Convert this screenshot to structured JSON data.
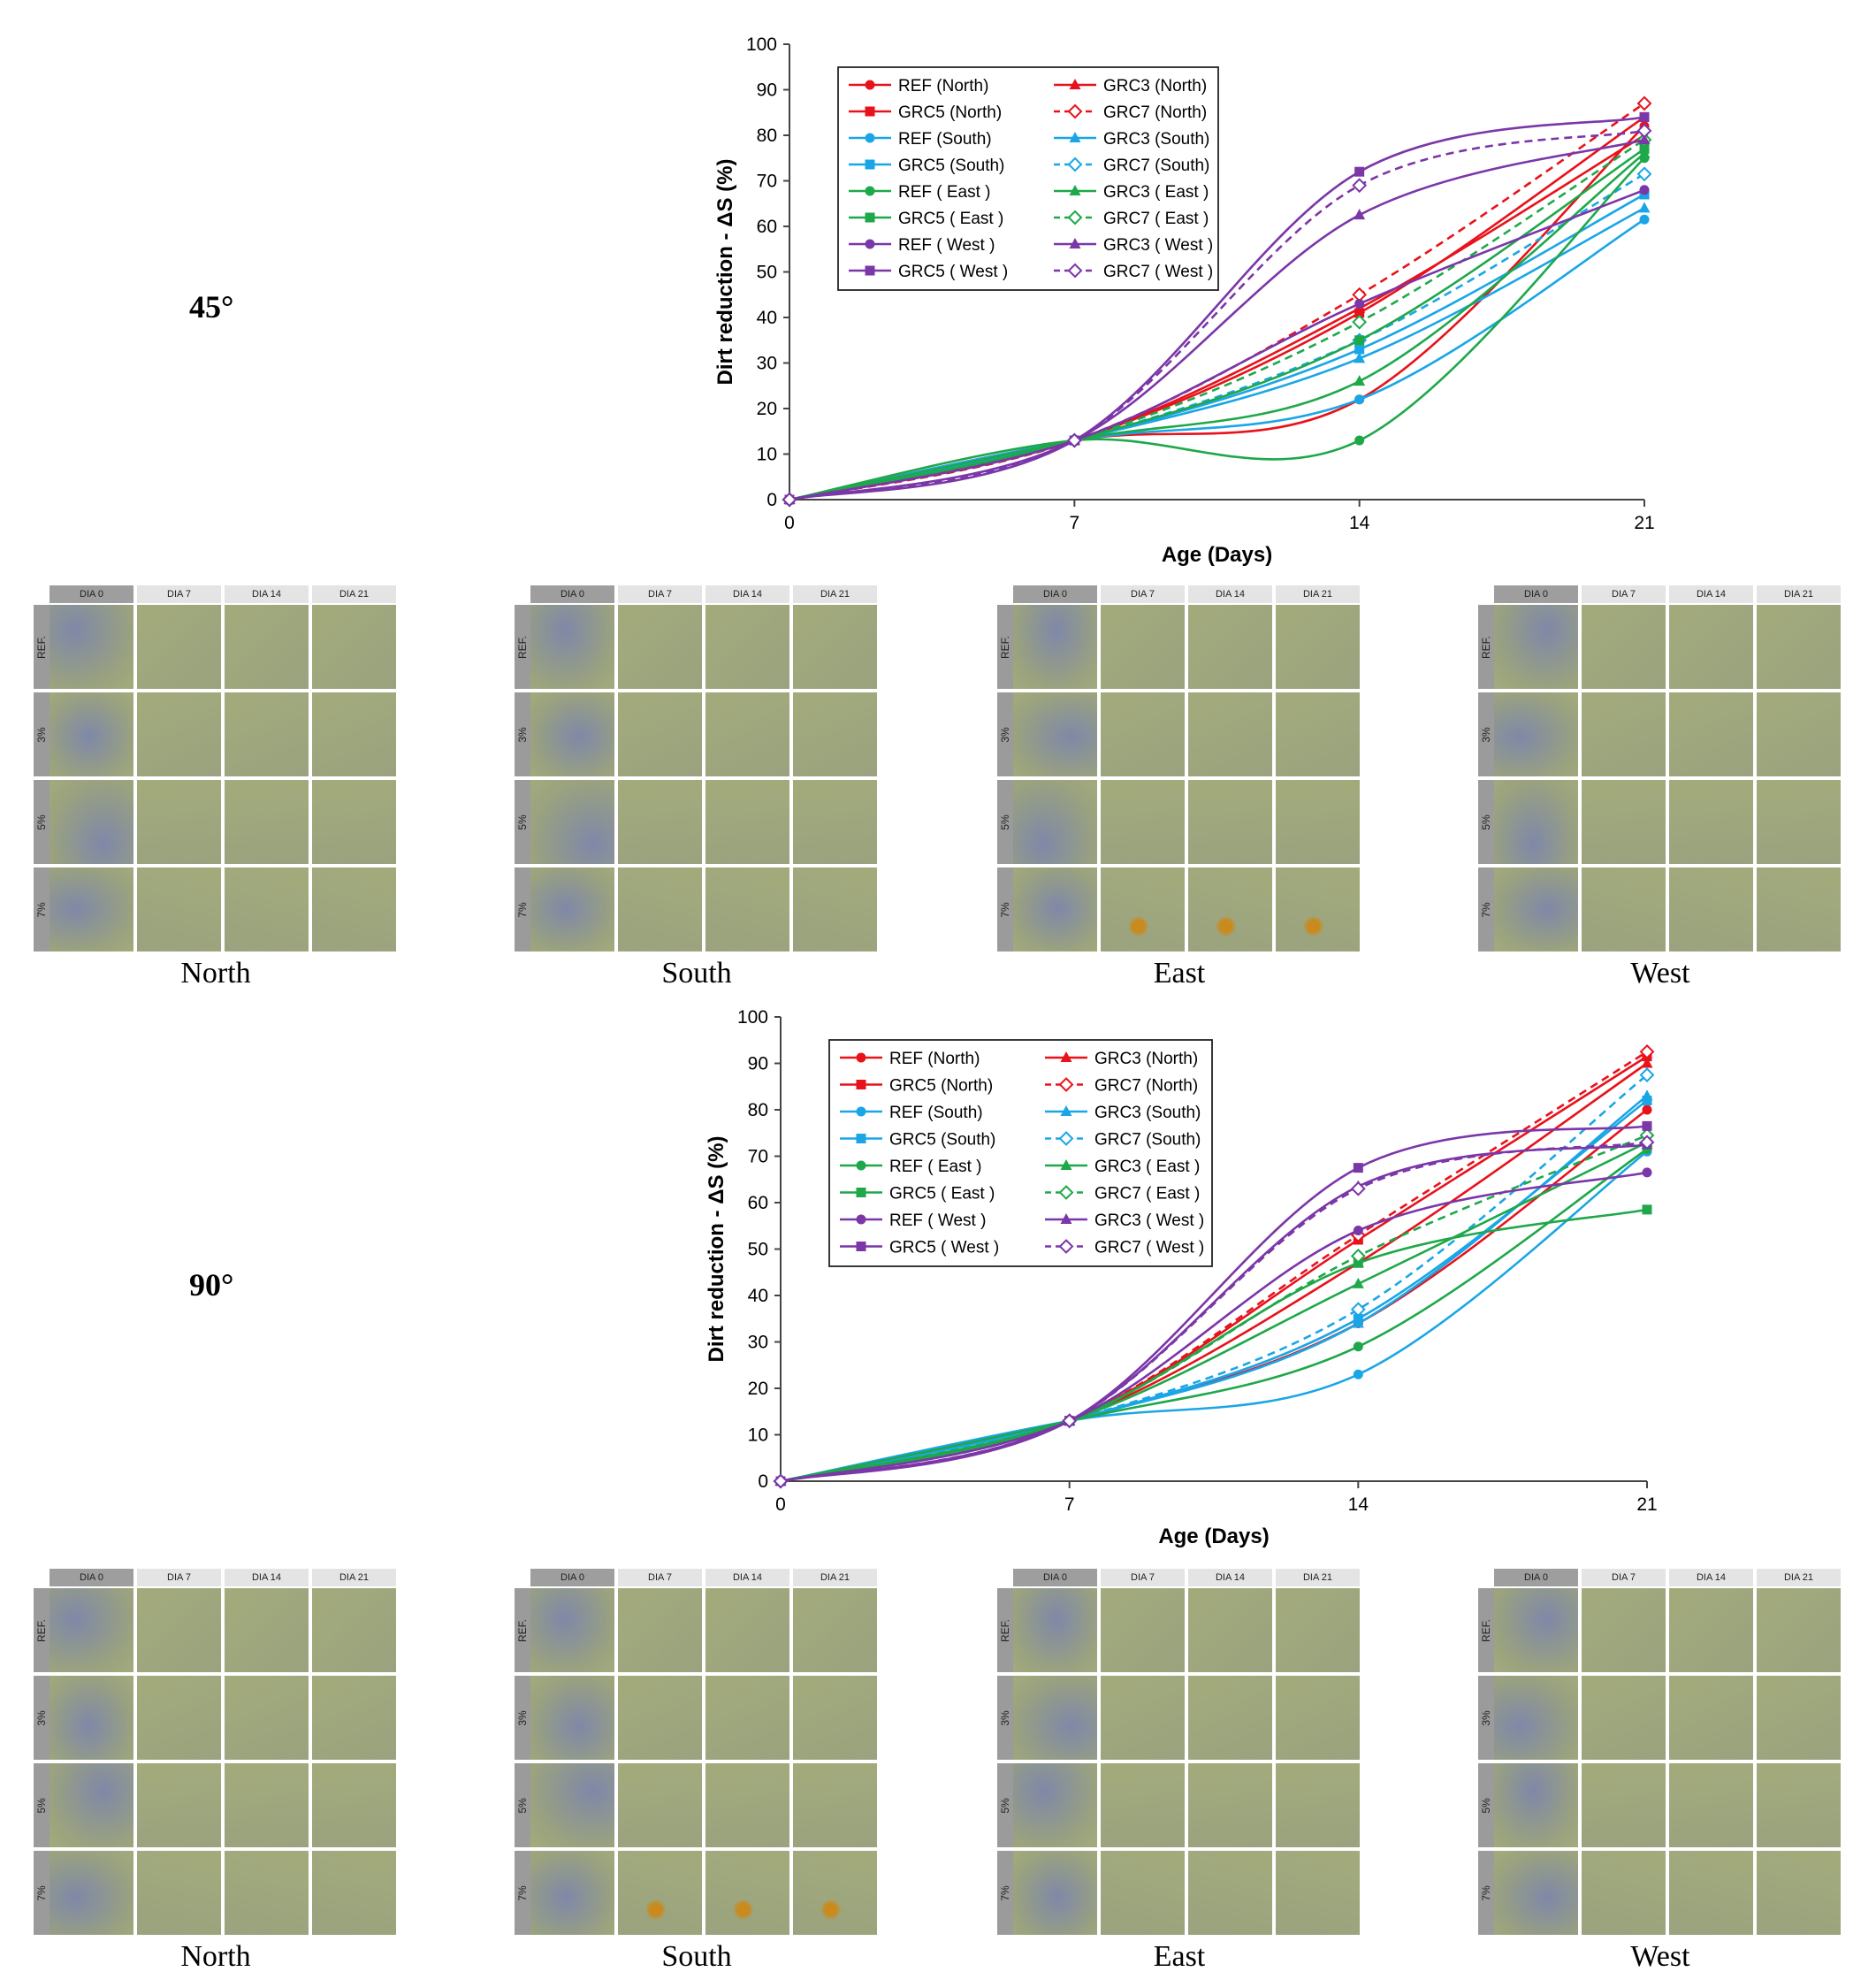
{
  "angles": [
    "45°",
    "90°"
  ],
  "photo_grid": {
    "columns": [
      "DIA 0",
      "DIA 7",
      "DIA 14",
      "DIA 21"
    ],
    "rows": [
      "REF.",
      "3%",
      "5%",
      "7%"
    ],
    "captions": [
      "North",
      "South",
      "East",
      "West"
    ],
    "colors": {
      "dirty": "#7f88a8",
      "clean": "#a3ab7c",
      "mid": "#9aa27f",
      "stain": "#c98a1e"
    }
  },
  "chart_data": [
    {
      "type": "line",
      "x": [
        0,
        7,
        14,
        21
      ],
      "xlabel": "Age (Days)",
      "ylabel": "Dirt reduction - ΔS (%)",
      "xticks": [
        0,
        7,
        14,
        21
      ],
      "ylim": [
        0,
        100
      ],
      "yticks": [
        0,
        10,
        20,
        30,
        40,
        50,
        60,
        70,
        80,
        90,
        100
      ],
      "legend_position": "top-left",
      "series": [
        {
          "name": "REF (North)",
          "color": "#e8121b",
          "marker": "circle",
          "dash": false,
          "values": [
            0,
            13,
            22,
            82
          ]
        },
        {
          "name": "GRC3 (North)",
          "color": "#e8121b",
          "marker": "triangle",
          "dash": false,
          "values": [
            0,
            13,
            42,
            80
          ]
        },
        {
          "name": "GRC5 (North)",
          "color": "#e8121b",
          "marker": "square",
          "dash": false,
          "values": [
            0,
            13,
            41,
            84
          ]
        },
        {
          "name": "GRC7 (North)",
          "color": "#e8121b",
          "marker": "diamond-open",
          "dash": true,
          "values": [
            0,
            13,
            45,
            87
          ]
        },
        {
          "name": "REF (South)",
          "color": "#1aa6e6",
          "marker": "circle",
          "dash": false,
          "values": [
            0,
            13,
            22,
            61.5
          ]
        },
        {
          "name": "GRC3 (South)",
          "color": "#1aa6e6",
          "marker": "triangle",
          "dash": false,
          "values": [
            0,
            13,
            31,
            64
          ]
        },
        {
          "name": "GRC5 (South)",
          "color": "#1aa6e6",
          "marker": "square",
          "dash": false,
          "values": [
            0,
            13,
            33,
            67
          ]
        },
        {
          "name": "GRC7 (South)",
          "color": "#1aa6e6",
          "marker": "diamond-open",
          "dash": true,
          "values": [
            0,
            13,
            35,
            71.5
          ]
        },
        {
          "name": "REF ( East )",
          "color": "#1ea84a",
          "marker": "circle",
          "dash": false,
          "values": [
            0,
            13,
            13,
            75
          ]
        },
        {
          "name": "GRC3 ( East )",
          "color": "#1ea84a",
          "marker": "triangle",
          "dash": false,
          "values": [
            0,
            13,
            26,
            76
          ]
        },
        {
          "name": "GRC5 ( East )",
          "color": "#1ea84a",
          "marker": "square",
          "dash": false,
          "values": [
            0,
            13,
            35,
            77
          ]
        },
        {
          "name": "GRC7 ( East )",
          "color": "#1ea84a",
          "marker": "diamond-open",
          "dash": true,
          "values": [
            0,
            13,
            39,
            79
          ]
        },
        {
          "name": "REF ( West )",
          "color": "#7b36a8",
          "marker": "circle",
          "dash": false,
          "values": [
            0,
            13,
            43,
            68
          ]
        },
        {
          "name": "GRC3 ( West )",
          "color": "#7b36a8",
          "marker": "triangle",
          "dash": false,
          "values": [
            0,
            13,
            62.5,
            79
          ]
        },
        {
          "name": "GRC5 ( West )",
          "color": "#7b36a8",
          "marker": "square",
          "dash": false,
          "values": [
            0,
            13,
            72,
            84
          ]
        },
        {
          "name": "GRC7 ( West )",
          "color": "#7b36a8",
          "marker": "diamond-open",
          "dash": true,
          "values": [
            0,
            13,
            69,
            81
          ]
        }
      ]
    },
    {
      "type": "line",
      "x": [
        0,
        7,
        14,
        21
      ],
      "xlabel": "Age (Days)",
      "ylabel": "Dirt reduction - ΔS (%)",
      "xticks": [
        0,
        7,
        14,
        21
      ],
      "ylim": [
        0,
        100
      ],
      "yticks": [
        0,
        10,
        20,
        30,
        40,
        50,
        60,
        70,
        80,
        90,
        100
      ],
      "legend_position": "top-left",
      "series": [
        {
          "name": "REF (North)",
          "color": "#e8121b",
          "marker": "circle",
          "dash": false,
          "values": [
            0,
            13,
            34,
            80
          ]
        },
        {
          "name": "GRC3 (North)",
          "color": "#e8121b",
          "marker": "triangle",
          "dash": false,
          "values": [
            0,
            13,
            47,
            90
          ]
        },
        {
          "name": "GRC5 (North)",
          "color": "#e8121b",
          "marker": "square",
          "dash": false,
          "values": [
            0,
            13,
            52,
            91.5
          ]
        },
        {
          "name": "GRC7 (North)",
          "color": "#e8121b",
          "marker": "diamond-open",
          "dash": true,
          "values": [
            0,
            13,
            53,
            92.5
          ]
        },
        {
          "name": "REF (South)",
          "color": "#1aa6e6",
          "marker": "circle",
          "dash": false,
          "values": [
            0,
            13,
            23,
            71
          ]
        },
        {
          "name": "GRC3 (South)",
          "color": "#1aa6e6",
          "marker": "triangle",
          "dash": false,
          "values": [
            0,
            13,
            34,
            83
          ]
        },
        {
          "name": "GRC5 (South)",
          "color": "#1aa6e6",
          "marker": "square",
          "dash": false,
          "values": [
            0,
            13,
            35,
            82
          ]
        },
        {
          "name": "GRC7 (South)",
          "color": "#1aa6e6",
          "marker": "diamond-open",
          "dash": true,
          "values": [
            0,
            13,
            37,
            87.5
          ]
        },
        {
          "name": "REF ( East )",
          "color": "#1ea84a",
          "marker": "circle",
          "dash": false,
          "values": [
            0,
            13,
            29,
            71.5
          ]
        },
        {
          "name": "GRC3 ( East )",
          "color": "#1ea84a",
          "marker": "triangle",
          "dash": false,
          "values": [
            0,
            13,
            42.5,
            73
          ]
        },
        {
          "name": "GRC5 ( East )",
          "color": "#1ea84a",
          "marker": "square",
          "dash": false,
          "values": [
            0,
            13,
            47,
            58.5
          ]
        },
        {
          "name": "GRC7 ( East )",
          "color": "#1ea84a",
          "marker": "diamond-open",
          "dash": true,
          "values": [
            0,
            13,
            48.5,
            74.5
          ]
        },
        {
          "name": "REF ( West )",
          "color": "#7b36a8",
          "marker": "circle",
          "dash": false,
          "values": [
            0,
            13,
            54,
            66.5
          ]
        },
        {
          "name": "GRC3 ( West )",
          "color": "#7b36a8",
          "marker": "triangle",
          "dash": false,
          "values": [
            0,
            13,
            63.5,
            72.5
          ]
        },
        {
          "name": "GRC5 ( West )",
          "color": "#7b36a8",
          "marker": "square",
          "dash": false,
          "values": [
            0,
            13,
            67.5,
            76.5
          ]
        },
        {
          "name": "GRC7 ( West )",
          "color": "#7b36a8",
          "marker": "diamond-open",
          "dash": true,
          "values": [
            0,
            13,
            63,
            73
          ]
        }
      ]
    }
  ]
}
